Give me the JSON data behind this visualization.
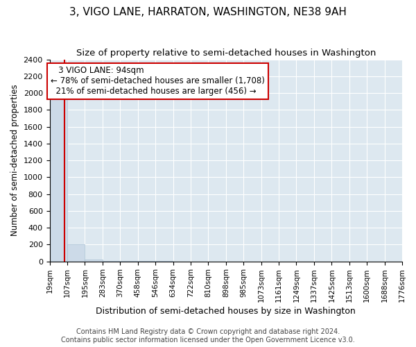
{
  "title": "3, VIGO LANE, HARRATON, WASHINGTON, NE38 9AH",
  "subtitle": "Size of property relative to semi-detached houses in Washington",
  "xlabel": "Distribution of semi-detached houses by size in Washington",
  "ylabel": "Number of semi-detached properties",
  "footer_line1": "Contains HM Land Registry data © Crown copyright and database right 2024.",
  "footer_line2": "Contains public sector information licensed under the Open Government Licence v3.0.",
  "bar_edges": [
    19,
    107,
    195,
    283,
    370,
    458,
    546,
    634,
    722,
    810,
    898,
    985,
    1073,
    1161,
    1249,
    1337,
    1425,
    1513,
    1600,
    1688,
    1776
  ],
  "bar_heights": [
    2000,
    200,
    25,
    4,
    2,
    1,
    1,
    0,
    0,
    0,
    0,
    0,
    0,
    0,
    0,
    0,
    0,
    0,
    0,
    0
  ],
  "bar_color": "#ccdae8",
  "bar_edgecolor": "#a8c0d4",
  "subject_size": 94,
  "subject_label": "3 VIGO LANE: 94sqm",
  "pct_smaller": 78,
  "n_smaller": 1708,
  "pct_larger": 21,
  "n_larger": 456,
  "redline_color": "#cc0000",
  "annotation_box_edgecolor": "#cc0000",
  "ylim": [
    0,
    2400
  ],
  "yticks": [
    0,
    200,
    400,
    600,
    800,
    1000,
    1200,
    1400,
    1600,
    1800,
    2000,
    2200,
    2400
  ],
  "background_color": "#dde8f0",
  "grid_color": "#ffffff",
  "fig_background": "#ffffff",
  "title_fontsize": 11,
  "subtitle_fontsize": 9.5,
  "tick_label_fontsize": 7.5,
  "ylabel_fontsize": 8.5,
  "xlabel_fontsize": 9,
  "annotation_fontsize": 8.5,
  "footer_fontsize": 7
}
